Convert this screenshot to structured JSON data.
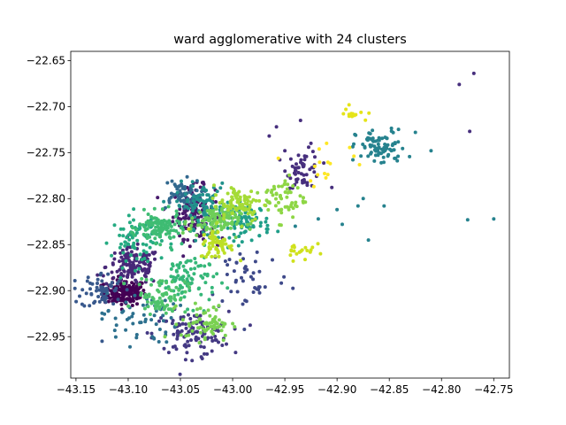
{
  "chart_data": {
    "type": "scatter",
    "title": "ward agglomerative with 24 clusters",
    "xlabel": "",
    "ylabel": "",
    "xlim": [
      -43.155,
      -42.735
    ],
    "ylim": [
      -22.995,
      -22.64
    ],
    "x_ticks": [
      -43.15,
      -43.1,
      -43.05,
      -43.0,
      -42.95,
      -42.9,
      -42.85,
      -42.8,
      -42.75
    ],
    "x_tick_labels": [
      "−43.15",
      "−43.10",
      "−43.05",
      "−43.00",
      "−42.95",
      "−42.90",
      "−42.85",
      "−42.80",
      "−42.75"
    ],
    "y_ticks": [
      -22.65,
      -22.7,
      -22.75,
      -22.8,
      -22.85,
      -22.9,
      -22.95
    ],
    "y_tick_labels": [
      "−22.65",
      "−22.70",
      "−22.75",
      "−22.80",
      "−22.85",
      "−22.90",
      "−22.95"
    ],
    "grid": false,
    "legend": "none",
    "marker_size": 2,
    "colormap": "viridis",
    "clusters": [
      {
        "color": "#440154",
        "cx": -43.103,
        "cy": -22.902,
        "sx": 0.01,
        "sy": 0.007,
        "n": 170
      },
      {
        "color": "#481a6c",
        "cx": -43.037,
        "cy": -22.815,
        "sx": 0.01,
        "sy": 0.014,
        "n": 150
      },
      {
        "color": "#482878",
        "cx": -43.095,
        "cy": -22.874,
        "sx": 0.013,
        "sy": 0.01,
        "n": 130
      },
      {
        "color": "#472f7d",
        "cx": -42.932,
        "cy": -22.768,
        "sx": 0.008,
        "sy": 0.01,
        "n": 55
      },
      {
        "color": "#443983",
        "cx": -43.04,
        "cy": -22.947,
        "sx": 0.018,
        "sy": 0.012,
        "n": 110
      },
      {
        "color": "#3e4989",
        "cx": -42.985,
        "cy": -22.885,
        "sx": 0.02,
        "sy": 0.02,
        "n": 45
      },
      {
        "color": "#38588c",
        "cx": -43.125,
        "cy": -22.9,
        "sx": 0.01,
        "sy": 0.01,
        "n": 60
      },
      {
        "color": "#31688e",
        "cx": -43.05,
        "cy": -22.795,
        "sx": 0.01,
        "sy": 0.008,
        "n": 60
      },
      {
        "color": "#2d708e",
        "cx": -43.09,
        "cy": -22.93,
        "sx": 0.018,
        "sy": 0.014,
        "n": 55
      },
      {
        "color": "#26828e",
        "cx": -42.858,
        "cy": -22.745,
        "sx": 0.012,
        "sy": 0.01,
        "n": 85
      },
      {
        "color": "#21918c",
        "cx": -43.03,
        "cy": -22.808,
        "sx": 0.012,
        "sy": 0.012,
        "n": 95
      },
      {
        "color": "#1f9e89",
        "cx": -42.988,
        "cy": -22.825,
        "sx": 0.012,
        "sy": 0.01,
        "n": 90
      },
      {
        "color": "#25ab82",
        "cx": -43.092,
        "cy": -22.845,
        "sx": 0.012,
        "sy": 0.014,
        "n": 80
      },
      {
        "color": "#35b779",
        "cx": -43.043,
        "cy": -22.887,
        "sx": 0.014,
        "sy": 0.014,
        "n": 90
      },
      {
        "color": "#3fbc73",
        "cx": -43.07,
        "cy": -22.832,
        "sx": 0.01,
        "sy": 0.008,
        "n": 110
      },
      {
        "color": "#4ec36b",
        "cx": -43.068,
        "cy": -22.905,
        "sx": 0.012,
        "sy": 0.01,
        "n": 75
      },
      {
        "color": "#6ece58",
        "cx": -43.017,
        "cy": -22.825,
        "sx": 0.012,
        "sy": 0.008,
        "n": 110
      },
      {
        "color": "#7ad151",
        "cx": -43.025,
        "cy": -22.935,
        "sx": 0.012,
        "sy": 0.01,
        "n": 70
      },
      {
        "color": "#8ed645",
        "cx": -42.95,
        "cy": -22.8,
        "sx": 0.01,
        "sy": 0.012,
        "n": 60
      },
      {
        "color": "#a5db36",
        "cx": -42.995,
        "cy": -22.805,
        "sx": 0.012,
        "sy": 0.01,
        "n": 85
      },
      {
        "color": "#bddf26",
        "cx": -43.015,
        "cy": -22.85,
        "sx": 0.008,
        "sy": 0.008,
        "n": 60
      },
      {
        "color": "#d0e11c",
        "cx": -42.935,
        "cy": -22.855,
        "sx": 0.007,
        "sy": 0.006,
        "n": 20
      },
      {
        "color": "#e5e419",
        "cx": -42.885,
        "cy": -22.708,
        "sx": 0.007,
        "sy": 0.004,
        "n": 14
      },
      {
        "color": "#fde725",
        "cx": -42.91,
        "cy": -22.76,
        "sx": 0.02,
        "sy": 0.01,
        "n": 15
      }
    ],
    "sparse_points": [
      {
        "x": -42.769,
        "y": -22.664,
        "color": "#472f7d"
      },
      {
        "x": -42.783,
        "y": -22.676,
        "color": "#472f7d"
      },
      {
        "x": -42.773,
        "y": -22.727,
        "color": "#472f7d"
      },
      {
        "x": -42.775,
        "y": -22.823,
        "color": "#26828e"
      },
      {
        "x": -42.75,
        "y": -22.822,
        "color": "#26828e"
      },
      {
        "x": -42.81,
        "y": -22.748,
        "color": "#26828e"
      },
      {
        "x": -42.825,
        "y": -22.728,
        "color": "#26828e"
      },
      {
        "x": -42.9,
        "y": -22.812,
        "color": "#26828e"
      },
      {
        "x": -42.88,
        "y": -22.808,
        "color": "#26828e"
      },
      {
        "x": -42.875,
        "y": -22.8,
        "color": "#26828e"
      },
      {
        "x": -42.895,
        "y": -22.828,
        "color": "#26828e"
      },
      {
        "x": -42.87,
        "y": -22.845,
        "color": "#26828e"
      },
      {
        "x": -42.855,
        "y": -22.808,
        "color": "#26828e"
      },
      {
        "x": -42.95,
        "y": -22.748,
        "color": "#472f7d"
      },
      {
        "x": -42.925,
        "y": -22.74,
        "color": "#472f7d"
      },
      {
        "x": -42.958,
        "y": -22.722,
        "color": "#472f7d"
      },
      {
        "x": -42.965,
        "y": -22.732,
        "color": "#472f7d"
      },
      {
        "x": -42.935,
        "y": -22.715,
        "color": "#472f7d"
      },
      {
        "x": -42.905,
        "y": -22.788,
        "color": "#472f7d"
      },
      {
        "x": -42.91,
        "y": -22.74,
        "color": "#fde725"
      },
      {
        "x": -42.94,
        "y": -22.83,
        "color": "#26828e"
      },
      {
        "x": -42.918,
        "y": -22.822,
        "color": "#26828e"
      },
      {
        "x": -43.125,
        "y": -22.955,
        "color": "#38588c"
      },
      {
        "x": -43.045,
        "y": -22.975,
        "color": "#443983"
      },
      {
        "x": -43.03,
        "y": -22.972,
        "color": "#443983"
      },
      {
        "x": -43.14,
        "y": -22.903,
        "color": "#38588c"
      }
    ]
  }
}
